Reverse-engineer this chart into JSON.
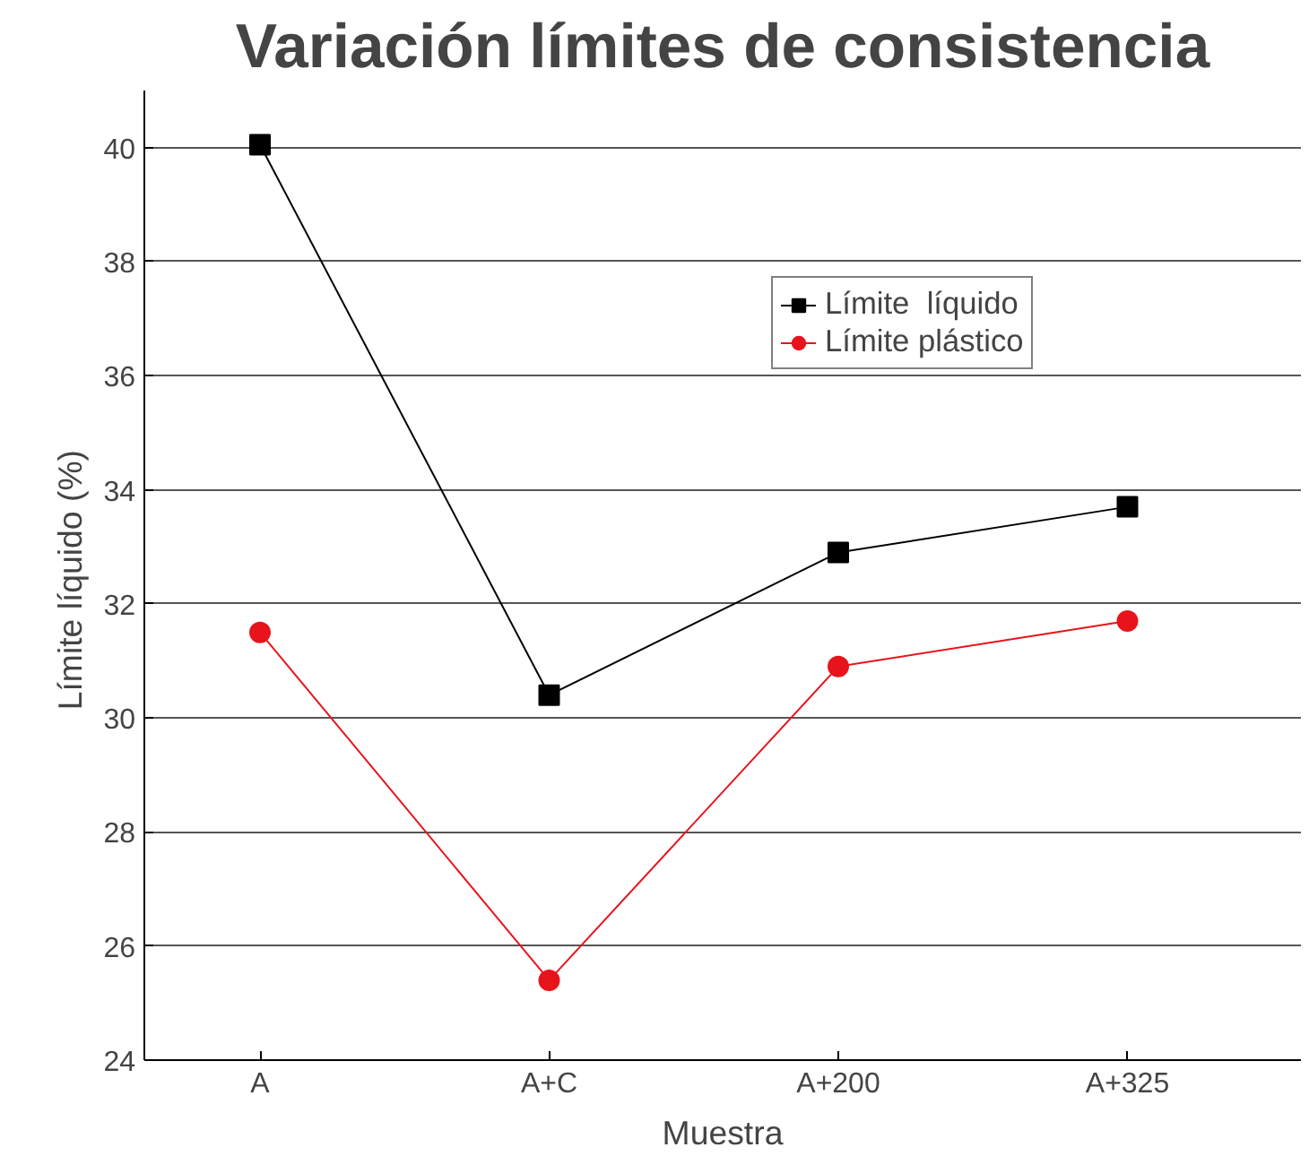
{
  "chart_data": {
    "type": "line",
    "title": "Variación límites de consistencia",
    "xlabel": "Muestra",
    "ylabel": "Límite  líquido (%)",
    "categories": [
      "A",
      "A+C",
      "A+200",
      "A+325"
    ],
    "series": [
      {
        "name": "Límite  líquido",
        "color": "#000000",
        "values": [
          40.05,
          30.4,
          32.9,
          33.7
        ],
        "marker": "square"
      },
      {
        "name": "Límite plástico",
        "color": "#e8141b",
        "values": [
          31.5,
          25.4,
          30.9,
          31.7
        ],
        "marker": "circle"
      }
    ],
    "ylim": [
      24,
      41
    ],
    "yticks": [
      24,
      26,
      28,
      30,
      32,
      34,
      36,
      38,
      40
    ],
    "grid": "y",
    "legend": "top right",
    "line_style": "solid"
  }
}
